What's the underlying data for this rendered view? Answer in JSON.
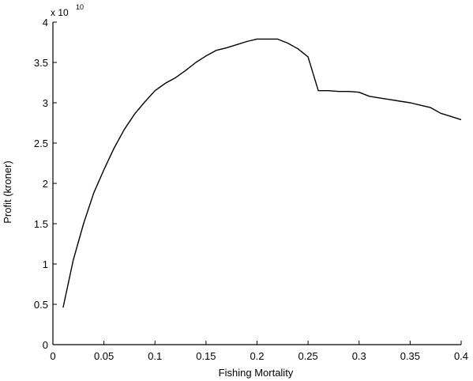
{
  "chart_data": {
    "type": "line",
    "title": "",
    "xlabel": "Fishing Mortality",
    "ylabel": "Profit (kroner)",
    "y_multiplier": {
      "base": "x 10",
      "exponent": "10"
    },
    "xlim": [
      0,
      0.4
    ],
    "ylim": [
      0,
      4
    ],
    "xticks": [
      0,
      0.05,
      0.1,
      0.15,
      0.2,
      0.25,
      0.3,
      0.35,
      0.4
    ],
    "xtick_labels": [
      "0",
      "0.05",
      "0.1",
      "0.15",
      "0.2",
      "0.25",
      "0.3",
      "0.35",
      "0.4"
    ],
    "yticks": [
      0,
      0.5,
      1,
      1.5,
      2,
      2.5,
      3,
      3.5,
      4
    ],
    "ytick_labels": [
      "0",
      "0.5",
      "1",
      "1.5",
      "2",
      "2.5",
      "3",
      "3.5",
      "4"
    ],
    "grid": false,
    "series": [
      {
        "color": "#000000",
        "x": [
          0.01,
          0.02,
          0.03,
          0.04,
          0.05,
          0.06,
          0.07,
          0.08,
          0.09,
          0.1,
          0.11,
          0.12,
          0.13,
          0.14,
          0.15,
          0.16,
          0.17,
          0.18,
          0.19,
          0.2,
          0.21,
          0.22,
          0.23,
          0.24,
          0.25,
          0.26,
          0.27,
          0.28,
          0.29,
          0.3,
          0.31,
          0.32,
          0.33,
          0.34,
          0.35,
          0.36,
          0.37,
          0.38,
          0.39,
          0.4
        ],
        "y": [
          0.46,
          1.05,
          1.5,
          1.88,
          2.17,
          2.44,
          2.67,
          2.86,
          3.01,
          3.15,
          3.24,
          3.31,
          3.4,
          3.5,
          3.58,
          3.65,
          3.68,
          3.72,
          3.76,
          3.79,
          3.79,
          3.79,
          3.74,
          3.67,
          3.57,
          3.15,
          3.15,
          3.14,
          3.14,
          3.13,
          3.08,
          3.06,
          3.04,
          3.02,
          3.0,
          2.97,
          2.94,
          2.87,
          2.83,
          2.79
        ]
      }
    ]
  }
}
